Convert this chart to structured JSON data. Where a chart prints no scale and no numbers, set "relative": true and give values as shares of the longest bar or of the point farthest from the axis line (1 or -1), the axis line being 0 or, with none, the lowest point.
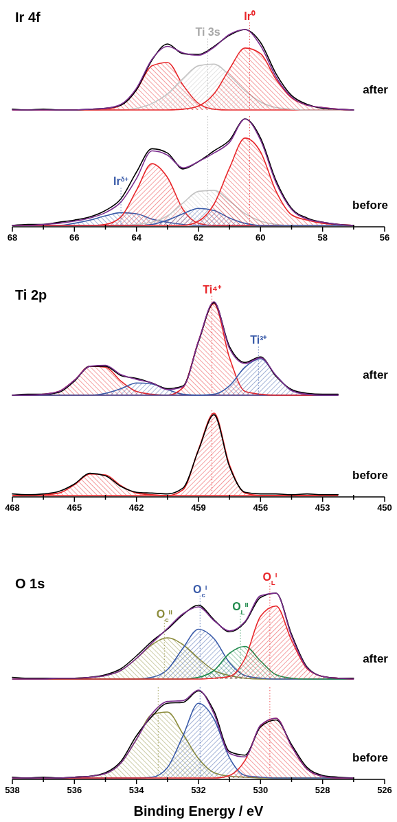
{
  "chart_data": [
    {
      "type": "area",
      "title": "Ir 4f",
      "annotations": [
        "after"
      ],
      "relative": true,
      "tick_labels": false,
      "xlim": [
        68,
        56
      ],
      "x": [
        68,
        67.5,
        67,
        66.5,
        66,
        65.5,
        65,
        64.5,
        64,
        63.5,
        63,
        62.5,
        62,
        61.5,
        61,
        60.5,
        60,
        59.5,
        59,
        58.5,
        58,
        57.5,
        57
      ],
      "series": [
        {
          "type": "area",
          "color": "#e8262a",
          "values": [
            0,
            0,
            0,
            0,
            0,
            0,
            0.01,
            0.06,
            0.25,
            0.55,
            0.59,
            0.31,
            0.08,
            0.01,
            0,
            0,
            0,
            0,
            0,
            0,
            0,
            0,
            0
          ]
        },
        {
          "type": "area",
          "color": "#c4c4c4",
          "values": [
            0,
            0,
            0,
            0,
            0,
            0,
            0,
            0,
            0.02,
            0.08,
            0.2,
            0.39,
            0.55,
            0.57,
            0.43,
            0.24,
            0.1,
            0.03,
            0.01,
            0,
            0,
            0,
            0
          ]
        },
        {
          "type": "area",
          "color": "#e8262a",
          "values": [
            0,
            0,
            0,
            0,
            0,
            0,
            0,
            0,
            0,
            0,
            0,
            0.01,
            0.05,
            0.2,
            0.51,
            0.77,
            0.7,
            0.38,
            0.15,
            0.06,
            0.03,
            0.01,
            0
          ]
        },
        {
          "type": "line",
          "color": "#000000",
          "values": [
            0.01,
            0,
            0.01,
            0,
            0,
            0.01,
            0.02,
            0.06,
            0.25,
            0.62,
            0.82,
            0.7,
            0.69,
            0.79,
            0.93,
            1.0,
            0.84,
            0.45,
            0.18,
            0.07,
            0.02,
            0.01,
            0
          ]
        },
        {
          "type": "line",
          "color": "#7b2d8e",
          "values": [
            0,
            0,
            0,
            0,
            0,
            0.01,
            0.02,
            0.07,
            0.27,
            0.63,
            0.79,
            0.71,
            0.68,
            0.78,
            0.94,
            1.0,
            0.8,
            0.41,
            0.16,
            0.06,
            0.03,
            0.01,
            0
          ]
        }
      ],
      "ref_lines": [
        {
          "axis": "x",
          "value": 61.7,
          "label": "Ti 3s",
          "color": "#a8a8a8",
          "line_style": "dotted"
        },
        {
          "axis": "x",
          "value": 60.35,
          "label": "Ir⁰",
          "color": "#e8262a",
          "line_style": "dotted"
        }
      ]
    },
    {
      "type": "area",
      "annotations": [
        "before"
      ],
      "relative": true,
      "xlim": [
        68,
        56
      ],
      "xticks": [
        68,
        {
          "value": 67,
          "label": null
        },
        66,
        {
          "value": 65,
          "label": null
        },
        64,
        {
          "value": 63,
          "label": null
        },
        62,
        {
          "value": 61,
          "label": null
        },
        60,
        {
          "value": 59,
          "label": null
        },
        58,
        {
          "value": 57,
          "label": null
        },
        56
      ],
      "x": [
        68,
        67.5,
        67,
        66.5,
        66,
        65.5,
        65,
        64.5,
        64,
        63.5,
        63,
        62.5,
        62,
        61.5,
        61,
        60.5,
        60,
        59.5,
        59,
        58.5,
        58,
        57.5,
        57
      ],
      "series": [
        {
          "type": "area",
          "color": "#3a5ba9",
          "values": [
            0,
            0,
            0,
            0,
            0.02,
            0.05,
            0.09,
            0.12,
            0.11,
            0.06,
            0.03,
            0.01,
            0,
            0,
            0,
            0,
            0,
            0,
            0,
            0,
            0,
            0,
            0
          ]
        },
        {
          "type": "area",
          "color": "#e8262a",
          "values": [
            0,
            0,
            0,
            0,
            0,
            0,
            0.01,
            0.08,
            0.33,
            0.58,
            0.45,
            0.15,
            0.02,
            0,
            0,
            0,
            0,
            0,
            0,
            0,
            0,
            0,
            0
          ]
        },
        {
          "type": "area",
          "color": "#c4c4c4",
          "values": [
            0,
            0,
            0,
            0,
            0,
            0,
            0,
            0,
            0.01,
            0.03,
            0.09,
            0.21,
            0.32,
            0.33,
            0.23,
            0.11,
            0.04,
            0.01,
            0,
            0,
            0,
            0,
            0
          ]
        },
        {
          "type": "area",
          "color": "#3a5ba9",
          "values": [
            0,
            0,
            0,
            0,
            0,
            0,
            0,
            0,
            0,
            0.01,
            0.05,
            0.11,
            0.16,
            0.14,
            0.07,
            0.02,
            0,
            0,
            0,
            0,
            0,
            0,
            0
          ]
        },
        {
          "type": "area",
          "color": "#e8262a",
          "values": [
            0,
            0,
            0,
            0,
            0,
            0,
            0,
            0,
            0,
            0,
            0,
            0,
            0.04,
            0.2,
            0.54,
            0.82,
            0.69,
            0.32,
            0.1,
            0.05,
            0.02,
            0.01,
            0
          ]
        },
        {
          "type": "line",
          "color": "#000000",
          "values": [
            0,
            0.01,
            0.01,
            0.03,
            0.05,
            0.08,
            0.14,
            0.25,
            0.5,
            0.72,
            0.68,
            0.53,
            0.6,
            0.7,
            0.8,
            1.0,
            0.82,
            0.42,
            0.16,
            0.07,
            0.03,
            0.01,
            0
          ]
        },
        {
          "type": "line",
          "color": "#7b2d8e",
          "values": [
            0,
            0,
            0.01,
            0.02,
            0.04,
            0.07,
            0.12,
            0.22,
            0.44,
            0.7,
            0.66,
            0.54,
            0.6,
            0.68,
            0.78,
            1.0,
            0.8,
            0.4,
            0.15,
            0.06,
            0.03,
            0.01,
            0
          ]
        }
      ],
      "ref_lines": [
        {
          "axis": "x",
          "value": 64.5,
          "label": "Ir$^{δ+}$",
          "color": "#3a5ba9",
          "line_style": "dotted"
        },
        {
          "axis": "x",
          "value": 61.7,
          "color": "#a8a8a8",
          "line_style": "dotted"
        },
        {
          "axis": "x",
          "value": 60.35,
          "color": "#e8262a",
          "line_style": "dotted"
        }
      ]
    },
    {
      "type": "area",
      "title": "Ti 2p",
      "annotations": [
        "after"
      ],
      "relative": true,
      "tick_labels": false,
      "xlim": [
        468,
        450
      ],
      "x": [
        468,
        467.25,
        466.5,
        465.75,
        465,
        464.25,
        463.5,
        462.75,
        462,
        461.25,
        460.5,
        459.75,
        459,
        458.25,
        457.5,
        456.75,
        456,
        455.25,
        454.5,
        453.75,
        453,
        452.25
      ],
      "series": [
        {
          "type": "area",
          "color": "#e8262a",
          "values": [
            0,
            0,
            0.01,
            0.04,
            0.16,
            0.31,
            0.3,
            0.15,
            0.04,
            0.01,
            0,
            0,
            0,
            0,
            0,
            0,
            0,
            0,
            0,
            0,
            0,
            0
          ]
        },
        {
          "type": "area",
          "color": "#3a5ba9",
          "values": [
            0,
            0,
            0,
            0,
            0,
            0,
            0.02,
            0.07,
            0.13,
            0.12,
            0.06,
            0.01,
            0,
            0,
            0,
            0,
            0,
            0,
            0,
            0,
            0,
            0
          ]
        },
        {
          "type": "area",
          "color": "#e8262a",
          "values": [
            0,
            0,
            0,
            0,
            0,
            0,
            0,
            0,
            0,
            0,
            0,
            0.08,
            0.58,
            0.98,
            0.4,
            0.04,
            0.01,
            0,
            0,
            0,
            0,
            0
          ]
        },
        {
          "type": "area",
          "color": "#3a5ba9",
          "values": [
            0,
            0,
            0,
            0,
            0,
            0,
            0,
            0,
            0,
            0,
            0,
            0,
            0,
            0.01,
            0.1,
            0.3,
            0.39,
            0.21,
            0.05,
            0.01,
            0,
            0
          ]
        },
        {
          "type": "line",
          "color": "#000000",
          "values": [
            0,
            0.01,
            0.01,
            0.03,
            0.15,
            0.31,
            0.31,
            0.21,
            0.18,
            0.13,
            0.07,
            0.1,
            0.57,
            0.99,
            0.52,
            0.35,
            0.41,
            0.2,
            0.06,
            0.02,
            0.01,
            0.01
          ]
        },
        {
          "type": "line",
          "color": "#7b2d8e",
          "values": [
            0,
            0,
            0.01,
            0.04,
            0.16,
            0.31,
            0.32,
            0.22,
            0.17,
            0.13,
            0.06,
            0.09,
            0.58,
            1.0,
            0.5,
            0.34,
            0.4,
            0.21,
            0.05,
            0.01,
            0,
            0
          ]
        }
      ],
      "ref_lines": [
        {
          "axis": "x",
          "value": 458.35,
          "label": "Ti⁴⁺",
          "color": "#e8262a",
          "line_style": "dotted"
        },
        {
          "axis": "x",
          "value": 456.1,
          "label": "Ti³⁺",
          "color": "#3a5ba9",
          "line_style": "dotted"
        }
      ]
    },
    {
      "type": "area",
      "annotations": [
        "before"
      ],
      "relative": true,
      "xlim": [
        468,
        450
      ],
      "xticks": [
        468,
        {
          "value": 466.5,
          "label": null
        },
        465,
        {
          "value": 463.5,
          "label": null
        },
        462,
        {
          "value": 460.5,
          "label": null
        },
        459,
        {
          "value": 457.5,
          "label": null
        },
        456,
        {
          "value": 454.5,
          "label": null
        },
        453,
        {
          "value": 451.5,
          "label": null
        },
        450
      ],
      "x": [
        468,
        467.25,
        466.5,
        465.75,
        465,
        464.25,
        463.5,
        462.75,
        462,
        461.25,
        460.5,
        459.75,
        459,
        458.25,
        457.5,
        456.75,
        456,
        455.25,
        454.5,
        453.75,
        453,
        452.25
      ],
      "series": [
        {
          "type": "area",
          "color": "#e8262a",
          "values": [
            0,
            0,
            0.01,
            0.03,
            0.13,
            0.26,
            0.25,
            0.12,
            0.03,
            0.01,
            0,
            0,
            0,
            0,
            0,
            0,
            0,
            0,
            0,
            0,
            0,
            0
          ]
        },
        {
          "type": "area",
          "color": "#e8262a",
          "values": [
            0,
            0,
            0,
            0,
            0,
            0,
            0,
            0,
            0,
            0,
            0,
            0.07,
            0.56,
            1.0,
            0.37,
            0.03,
            0,
            0,
            0,
            0,
            0,
            0
          ]
        },
        {
          "type": "line",
          "color": "#000000",
          "values": [
            0.02,
            0.01,
            0.02,
            0.05,
            0.14,
            0.27,
            0.24,
            0.11,
            0.04,
            0.03,
            0.02,
            0.09,
            0.55,
            0.98,
            0.35,
            0.04,
            0.02,
            0.02,
            0.01,
            0.02,
            0.01,
            0.01
          ]
        }
      ],
      "ref_lines": [
        {
          "axis": "x",
          "value": 458.35,
          "color": "#e8262a",
          "line_style": "dotted"
        }
      ]
    },
    {
      "type": "area",
      "title": "O 1s",
      "annotations": [
        "after"
      ],
      "relative": true,
      "tick_labels": false,
      "xlim": [
        538,
        526
      ],
      "x": [
        538,
        537.5,
        537,
        536.5,
        536,
        535.5,
        535,
        534.5,
        534,
        533.5,
        533,
        532.5,
        532,
        531.5,
        531,
        530.5,
        530,
        529.5,
        529,
        528.5,
        528,
        527.5,
        527
      ],
      "series": [
        {
          "type": "area",
          "color": "#8b8b3a",
          "values": [
            0,
            0,
            0,
            0,
            0.01,
            0.02,
            0.04,
            0.1,
            0.24,
            0.4,
            0.48,
            0.4,
            0.24,
            0.1,
            0.04,
            0.01,
            0,
            0,
            0,
            0,
            0,
            0,
            0
          ]
        },
        {
          "type": "area",
          "color": "#3a5ba9",
          "values": [
            0,
            0,
            0,
            0,
            0,
            0,
            0,
            0,
            0,
            0.02,
            0.11,
            0.36,
            0.58,
            0.47,
            0.19,
            0.04,
            0.01,
            0,
            0,
            0,
            0,
            0,
            0
          ]
        },
        {
          "type": "area",
          "color": "#1f8a4c",
          "values": [
            0,
            0,
            0,
            0,
            0,
            0,
            0,
            0,
            0,
            0,
            0,
            0,
            0.02,
            0.1,
            0.3,
            0.38,
            0.21,
            0.05,
            0.01,
            0,
            0,
            0,
            0
          ]
        },
        {
          "type": "area",
          "color": "#e8262a",
          "values": [
            0,
            0,
            0,
            0,
            0,
            0,
            0,
            0,
            0,
            0,
            0,
            0,
            0,
            0.01,
            0.03,
            0.24,
            0.73,
            0.85,
            0.45,
            0.12,
            0.03,
            0.01,
            0
          ]
        },
        {
          "type": "line",
          "color": "#000000",
          "values": [
            0.02,
            0.01,
            0.01,
            0.01,
            0.01,
            0.02,
            0.05,
            0.12,
            0.27,
            0.44,
            0.58,
            0.75,
            0.86,
            0.69,
            0.55,
            0.66,
            0.95,
            1.0,
            0.52,
            0.14,
            0.03,
            0.01,
            0.01
          ]
        },
        {
          "type": "line",
          "color": "#7b2d8e",
          "values": [
            0,
            0,
            0,
            0.01,
            0.01,
            0.02,
            0.04,
            0.1,
            0.24,
            0.42,
            0.59,
            0.76,
            0.84,
            0.68,
            0.56,
            0.67,
            0.97,
            1.0,
            0.5,
            0.13,
            0.03,
            0.01,
            0
          ]
        }
      ],
      "ref_lines": [
        {
          "axis": "x",
          "value": 533.1,
          "label": "O$_{c}$$^{II}$",
          "color": "#8b8b3a",
          "line_style": "dotted"
        },
        {
          "axis": "x",
          "value": 531.95,
          "label": "O$_{c}$$^{I}$",
          "color": "#3a5ba9",
          "line_style": "dotted"
        },
        {
          "axis": "x",
          "value": 530.65,
          "label": "O$_{L}$$^{II}$",
          "color": "#1f8a4c",
          "line_style": "dotted"
        },
        {
          "axis": "x",
          "value": 529.7,
          "label": "O$_{L}$$^{I}$",
          "color": "#e8262a",
          "line_style": "dotted"
        }
      ]
    },
    {
      "type": "area",
      "annotations": [
        "before"
      ],
      "relative": true,
      "xlim": [
        538,
        526
      ],
      "xlabel": "Binding Energy / eV",
      "xticks": [
        538,
        {
          "value": 537,
          "label": null
        },
        536,
        {
          "value": 535,
          "label": null
        },
        534,
        {
          "value": 533,
          "label": null
        },
        532,
        {
          "value": 531,
          "label": null
        },
        530,
        {
          "value": 529,
          "label": null
        },
        528,
        {
          "value": 527,
          "label": null
        },
        526
      ],
      "x": [
        538,
        537.5,
        537,
        536.5,
        536,
        535.5,
        535,
        534.5,
        534,
        533.5,
        533,
        532.5,
        532,
        531.5,
        531,
        530.5,
        530,
        529.5,
        529,
        528.5,
        528,
        527.5,
        527
      ],
      "series": [
        {
          "type": "area",
          "color": "#8b8b3a",
          "values": [
            0,
            0,
            0,
            0,
            0.01,
            0.02,
            0.05,
            0.17,
            0.44,
            0.72,
            0.75,
            0.5,
            0.22,
            0.06,
            0.02,
            0.01,
            0,
            0,
            0,
            0,
            0,
            0,
            0
          ]
        },
        {
          "type": "area",
          "color": "#3a5ba9",
          "values": [
            0,
            0,
            0,
            0,
            0,
            0,
            0,
            0,
            0,
            0.01,
            0.12,
            0.48,
            0.85,
            0.67,
            0.23,
            0.03,
            0.01,
            0,
            0,
            0,
            0,
            0,
            0
          ]
        },
        {
          "type": "area",
          "color": "#e8262a",
          "values": [
            0,
            0,
            0,
            0,
            0,
            0,
            0,
            0,
            0,
            0,
            0,
            0,
            0,
            0,
            0.03,
            0.2,
            0.59,
            0.68,
            0.36,
            0.1,
            0.02,
            0,
            0
          ]
        },
        {
          "type": "line",
          "color": "#000000",
          "values": [
            0.01,
            0,
            0.01,
            0,
            0.01,
            0.02,
            0.06,
            0.19,
            0.48,
            0.7,
            0.85,
            0.86,
            0.99,
            0.76,
            0.3,
            0.26,
            0.58,
            0.66,
            0.38,
            0.12,
            0.03,
            0.01,
            0
          ]
        },
        {
          "type": "line",
          "color": "#7b2d8e",
          "values": [
            0,
            0,
            0,
            0,
            0.01,
            0.02,
            0.05,
            0.17,
            0.44,
            0.73,
            0.87,
            0.88,
            1.0,
            0.73,
            0.28,
            0.24,
            0.6,
            0.68,
            0.36,
            0.1,
            0.02,
            0,
            0
          ]
        }
      ],
      "ref_lines": [
        {
          "axis": "x",
          "value": 533.3,
          "color": "#8b8b3a",
          "line_style": "dotted"
        },
        {
          "axis": "x",
          "value": 531.95,
          "color": "#3a5ba9",
          "line_style": "dotted"
        },
        {
          "axis": "x",
          "value": 529.7,
          "color": "#e8262a",
          "line_style": "dotted"
        }
      ]
    }
  ]
}
